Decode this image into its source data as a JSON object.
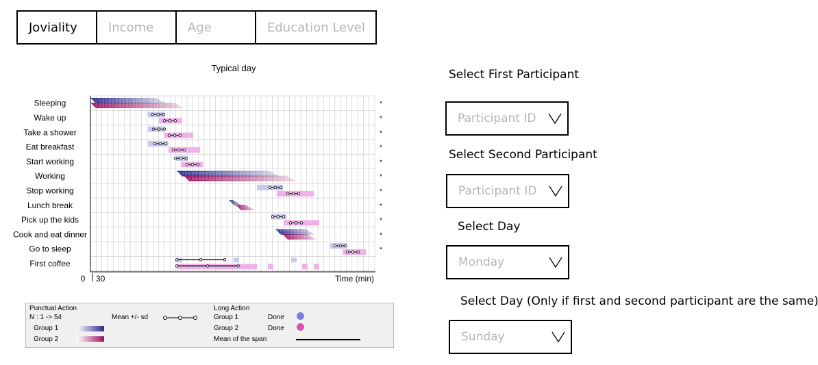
{
  "tabs": [
    {
      "label": "Joviality",
      "active": true
    },
    {
      "label": "Income",
      "active": false
    },
    {
      "label": "Age",
      "active": false
    },
    {
      "label": "Education Level",
      "active": false
    }
  ],
  "chart_data": {
    "type": "timeline",
    "title": "Typical day",
    "activities": [
      "Sleeping",
      "Wake up",
      "Take a shower",
      "Eat breakfast",
      "Start working",
      "Working",
      "Stop working",
      "Lunch break",
      "Pick up the kids",
      "Cook and eat dinner",
      "Go to sleep",
      "First coffee"
    ],
    "x_tick_labels": [
      "0",
      "30"
    ],
    "xlabel": "Time (min)",
    "grid": true,
    "colors": {
      "group1_light": "#c8c8f0",
      "group1_dark": "#2a2a8c",
      "group2_light": "#f0b0e8",
      "group2_dark": "#9a1060",
      "grid": "#c8c8c8"
    }
  },
  "legend": {
    "punctual_title": "Punctual Action",
    "n_label": "N : 1 -> 54",
    "mean_sd": "Mean +/- sd",
    "group1": "Group 1",
    "group2": "Group 2",
    "long_title": "Long Action",
    "long_group1": "Group 1",
    "long_group2": "Group 2",
    "done": "Done",
    "mean_span": "Mean of the span"
  },
  "controls": {
    "first_label": "Select First Participant",
    "first_placeholder": "Participant ID",
    "second_label": "Select Second Participant",
    "second_placeholder": "Participant ID",
    "day_label": "Select Day",
    "day_value": "Monday",
    "day2_label": "Select Day (Only if first and second participant are the same)",
    "day2_value": "Sunday"
  }
}
